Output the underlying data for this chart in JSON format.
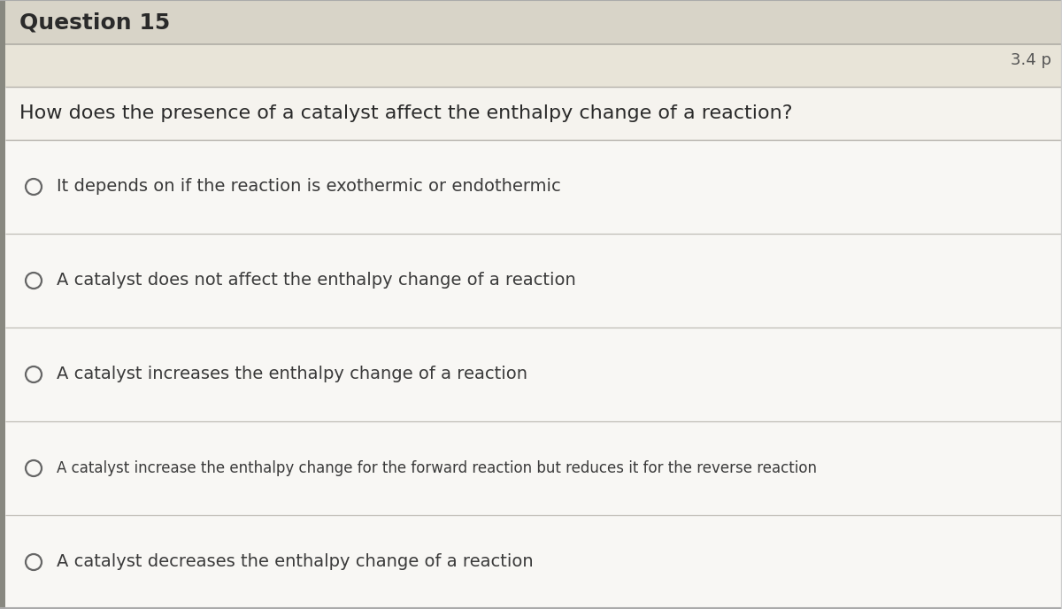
{
  "question_number": "Question 15",
  "points": "3.4 p",
  "question_text": "How does the presence of a catalyst affect the enthalpy change of a reaction?",
  "options": [
    "It depends on if the reaction is exothermic or endothermic",
    "A catalyst does not affect the enthalpy change of a reaction",
    "A catalyst increases the enthalpy change of a reaction",
    "A catalyst increase the enthalpy change for the forward reaction but reduces it for the reverse reaction",
    "A catalyst decreases the enthalpy change of a reaction"
  ],
  "header_bg": "#d8d4c8",
  "header_text_color": "#2a2a2a",
  "body_bg": "#f0ede6",
  "options_area_bg": "#f8f7f4",
  "option_text_color": "#3a3a3a",
  "question_text_color": "#2a2a2a",
  "divider_color": "#c0bdb6",
  "header_font_size": 18,
  "question_font_size": 16,
  "option_font_size": 14,
  "points_font_size": 13,
  "circle_color": "#666666",
  "left_border_color": "#888880",
  "fig_width": 12.0,
  "fig_height": 6.88
}
